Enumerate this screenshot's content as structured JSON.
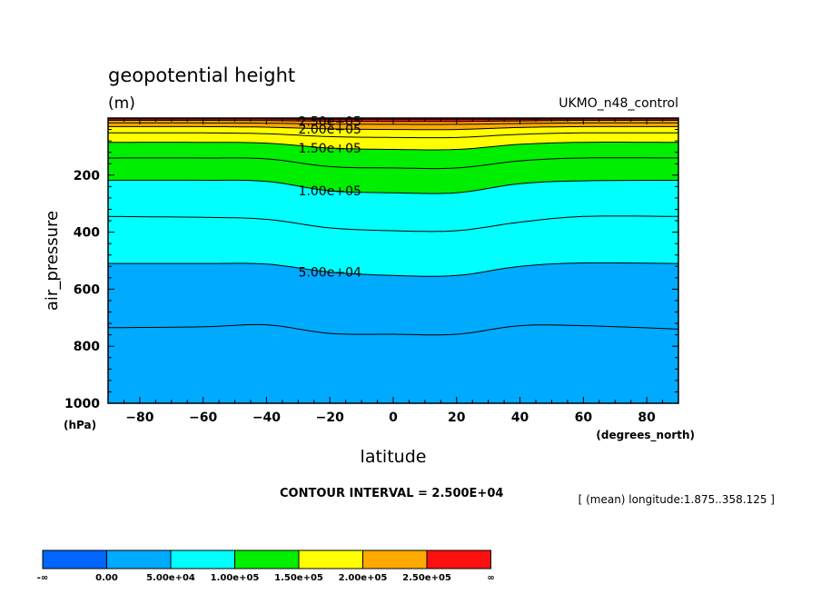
{
  "chart_data": {
    "type": "contour",
    "title": "geopotential height",
    "units": "(m)",
    "model_label": "UKMO_n48_control",
    "xlabel": "latitude",
    "x_units": "(degrees_north)",
    "ylabel": "air_pressure",
    "y_units": "(hPa)",
    "xlim": [
      -90,
      90
    ],
    "ylim": [
      1000,
      0
    ],
    "y_scale": "linear",
    "y_inverted": true,
    "x_ticks": [
      "-80",
      "-60",
      "-40",
      "-20",
      "0",
      "20",
      "40",
      "60",
      "80"
    ],
    "y_ticks": [
      "200",
      "400",
      "600",
      "800",
      "1000"
    ],
    "contour_interval_text": "CONTOUR INTERVAL = 2.500E+04",
    "averaging_note": "[ (mean) longitude:1.875..358.125 ]",
    "contour_labels": [
      "2.50e+05",
      "2.00e+05",
      "1.50e+05",
      "1.00e+05",
      "5.00e+04"
    ],
    "contours": [
      {
        "level": 25000,
        "lat": [
          -90,
          -60,
          -40,
          -20,
          0,
          20,
          40,
          60,
          90
        ],
        "p": [
          735,
          732,
          725,
          755,
          758,
          758,
          728,
          728,
          740
        ]
      },
      {
        "level": 50000,
        "lat": [
          -90,
          -60,
          -40,
          -20,
          0,
          20,
          40,
          60,
          90
        ],
        "p": [
          510,
          510,
          512,
          540,
          552,
          552,
          520,
          508,
          510
        ]
      },
      {
        "level": 75000,
        "lat": [
          -90,
          -60,
          -40,
          -20,
          0,
          20,
          40,
          60,
          90
        ],
        "p": [
          345,
          348,
          355,
          385,
          395,
          395,
          365,
          345,
          345
        ]
      },
      {
        "level": 100000,
        "lat": [
          -90,
          -60,
          -40,
          -20,
          0,
          20,
          40,
          60,
          90
        ],
        "p": [
          218,
          218,
          222,
          255,
          262,
          262,
          230,
          220,
          218
        ]
      },
      {
        "level": 125000,
        "lat": [
          -90,
          -60,
          -40,
          -20,
          0,
          20,
          40,
          60,
          90
        ],
        "p": [
          140,
          140,
          143,
          170,
          175,
          175,
          150,
          140,
          140
        ]
      },
      {
        "level": 150000,
        "lat": [
          -90,
          -60,
          -40,
          -20,
          0,
          20,
          40,
          60,
          90
        ],
        "p": [
          85,
          85,
          88,
          105,
          110,
          110,
          92,
          85,
          85
        ]
      },
      {
        "level": 175000,
        "lat": [
          -90,
          -60,
          -40,
          -20,
          0,
          20,
          40,
          60,
          90
        ],
        "p": [
          52,
          52,
          55,
          65,
          68,
          68,
          57,
          52,
          52
        ]
      },
      {
        "level": 200000,
        "lat": [
          -90,
          -60,
          -40,
          -20,
          0,
          20,
          40,
          60,
          90
        ],
        "p": [
          30,
          30,
          32,
          38,
          40,
          40,
          33,
          30,
          30
        ]
      },
      {
        "level": 225000,
        "lat": [
          -90,
          -60,
          -40,
          -20,
          0,
          20,
          40,
          60,
          90
        ],
        "p": [
          17,
          17,
          18,
          21,
          22,
          22,
          19,
          17,
          17
        ]
      },
      {
        "level": 250000,
        "lat": [
          -90,
          -60,
          -40,
          -20,
          0,
          20,
          40,
          60,
          90
        ],
        "p": [
          8,
          8,
          9,
          11,
          12,
          12,
          10,
          8,
          8
        ]
      },
      {
        "level": 275000,
        "lat": [
          -90,
          -60,
          -40,
          -20,
          0,
          20,
          40,
          60,
          90
        ],
        "p": [
          3,
          3,
          3,
          4,
          4,
          4,
          4,
          3,
          3
        ]
      }
    ],
    "fill_bands": [
      {
        "from_level": null,
        "to_level": 50000,
        "color": "#00aaff"
      },
      {
        "from_level": 50000,
        "to_level": 100000,
        "color": "#00ffff"
      },
      {
        "from_level": 100000,
        "to_level": 150000,
        "color": "#00ee00"
      },
      {
        "from_level": 150000,
        "to_level": 200000,
        "color": "#ffff00"
      },
      {
        "from_level": 200000,
        "to_level": 250000,
        "color": "#ffaa00"
      },
      {
        "from_level": 250000,
        "to_level": null,
        "color": "#ff1010"
      }
    ],
    "colorbar": {
      "colors": [
        "#0066ff",
        "#00aaff",
        "#00ffff",
        "#00ee00",
        "#ffff00",
        "#ffaa00",
        "#ff1010"
      ],
      "labels": [
        "-∞",
        "0.00",
        "5.00e+04",
        "1.00e+05",
        "1.50e+05",
        "2.00e+05",
        "2.50e+05",
        "∞"
      ]
    }
  }
}
